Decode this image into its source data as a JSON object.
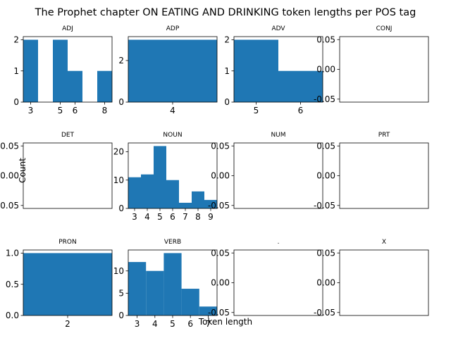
{
  "figure": {
    "title": "The Prophet chapter ON EATING AND DRINKING token lengths per POS tag",
    "xlabel": "Token length",
    "ylabel": "Count"
  },
  "colors": {
    "bar": "#1f77b4",
    "axis": "#000000"
  },
  "chart_data": [
    {
      "type": "bar",
      "title": "ADJ",
      "xlim": [
        2.5,
        8.5
      ],
      "ylim": [
        0,
        2.1
      ],
      "xticks": [
        3,
        5,
        6,
        8
      ],
      "yticks": [
        0,
        1,
        2
      ],
      "bins": [
        [
          2.5,
          3.5,
          2
        ],
        [
          3.5,
          4.5,
          0
        ],
        [
          4.5,
          5.5,
          2
        ],
        [
          5.5,
          6.5,
          1
        ],
        [
          6.5,
          7.5,
          0
        ],
        [
          7.5,
          8.5,
          1
        ]
      ]
    },
    {
      "type": "bar",
      "title": "ADP",
      "xlim": [
        3.5,
        4.5
      ],
      "ylim": [
        0,
        3.15
      ],
      "xticks": [
        4
      ],
      "yticks": [
        0,
        2
      ],
      "bins": [
        [
          3.5,
          4.5,
          3
        ]
      ]
    },
    {
      "type": "bar",
      "title": "ADV",
      "xlim": [
        4.5,
        6.5
      ],
      "ylim": [
        0,
        2.1
      ],
      "xticks": [
        5,
        6
      ],
      "yticks": [
        0,
        1,
        2
      ],
      "bins": [
        [
          4.5,
          5.5,
          2
        ],
        [
          5.5,
          6.5,
          1
        ]
      ]
    },
    {
      "type": "bar",
      "title": "CONJ",
      "xlim": [
        0,
        1
      ],
      "ylim": [
        -0.055,
        0.055
      ],
      "xticks": [],
      "yticks": [
        0.05,
        0.0,
        -0.05
      ],
      "bins": []
    },
    {
      "type": "bar",
      "title": "DET",
      "xlim": [
        0,
        1
      ],
      "ylim": [
        -0.055,
        0.055
      ],
      "xticks": [],
      "yticks": [
        0.05,
        0.0,
        -0.05
      ],
      "bins": []
    },
    {
      "type": "bar",
      "title": "NOUN",
      "xlim": [
        2.5,
        9.5
      ],
      "ylim": [
        0,
        23.1
      ],
      "xticks": [
        3,
        4,
        5,
        6,
        7,
        8,
        9
      ],
      "yticks": [
        0,
        10,
        20
      ],
      "bins": [
        [
          2.5,
          3.5,
          11
        ],
        [
          3.5,
          4.5,
          12
        ],
        [
          4.5,
          5.5,
          22
        ],
        [
          5.5,
          6.5,
          10
        ],
        [
          6.5,
          7.5,
          2
        ],
        [
          7.5,
          8.5,
          6
        ],
        [
          8.5,
          9.5,
          3
        ]
      ]
    },
    {
      "type": "bar",
      "title": "NUM",
      "xlim": [
        0,
        1
      ],
      "ylim": [
        -0.055,
        0.055
      ],
      "xticks": [],
      "yticks": [
        0.05,
        0.0,
        -0.05
      ],
      "bins": []
    },
    {
      "type": "bar",
      "title": "PRT",
      "xlim": [
        0,
        1
      ],
      "ylim": [
        -0.055,
        0.055
      ],
      "xticks": [],
      "yticks": [
        0.05,
        0.0,
        -0.05
      ],
      "bins": []
    },
    {
      "type": "bar",
      "title": "PRON",
      "xlim": [
        1.5,
        2.5
      ],
      "ylim": [
        0,
        1.05
      ],
      "xticks": [
        2
      ],
      "yticks": [
        0.0,
        0.5,
        1.0
      ],
      "bins": [
        [
          1.5,
          2.5,
          1
        ]
      ]
    },
    {
      "type": "bar",
      "title": "VERB",
      "xlim": [
        2.5,
        7.5
      ],
      "ylim": [
        0,
        14.7
      ],
      "xticks": [
        3,
        4,
        5,
        6,
        7
      ],
      "yticks": [
        0,
        5,
        10
      ],
      "bins": [
        [
          2.5,
          3.5,
          12
        ],
        [
          3.5,
          4.5,
          10
        ],
        [
          4.5,
          5.5,
          14
        ],
        [
          5.5,
          6.5,
          6
        ],
        [
          6.5,
          7.5,
          2
        ]
      ]
    },
    {
      "type": "bar",
      "title": ".",
      "xlim": [
        0,
        1
      ],
      "ylim": [
        -0.055,
        0.055
      ],
      "xticks": [],
      "yticks": [
        0.05,
        0.0,
        -0.05
      ],
      "bins": []
    },
    {
      "type": "bar",
      "title": "X",
      "xlim": [
        0,
        1
      ],
      "ylim": [
        -0.055,
        0.055
      ],
      "xticks": [],
      "yticks": [
        0.05,
        0.0,
        -0.05
      ],
      "bins": []
    }
  ]
}
